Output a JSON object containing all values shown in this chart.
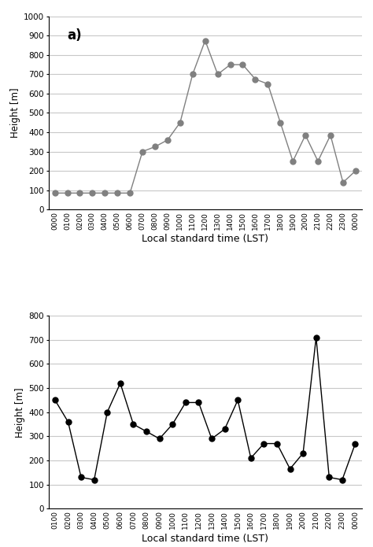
{
  "plot_a": {
    "label": "a)",
    "x_labels": [
      "0000",
      "0100",
      "0200",
      "0300",
      "0400",
      "0500",
      "0600",
      "0700",
      "0800",
      "0900",
      "1000",
      "1100",
      "1200",
      "1300",
      "1400",
      "1500",
      "1600",
      "1700",
      "1800",
      "1900",
      "2000",
      "2100",
      "2200",
      "2300",
      "0000"
    ],
    "values": [
      85,
      85,
      85,
      85,
      85,
      85,
      85,
      300,
      325,
      360,
      450,
      700,
      875,
      700,
      750,
      750,
      675,
      650,
      450,
      250,
      385,
      250,
      385,
      140,
      200
    ],
    "ylim": [
      0,
      1000
    ],
    "yticks": [
      0,
      100,
      200,
      300,
      400,
      500,
      600,
      700,
      800,
      900,
      1000
    ],
    "ylabel": "Height [m]",
    "xlabel": "Local standard time (LST)",
    "marker": "o",
    "markersize": 5,
    "color": "#808080",
    "linewidth": 1.0
  },
  "plot_b": {
    "x_labels": [
      "0100",
      "0200",
      "0300",
      "0400",
      "0500",
      "0600",
      "0700",
      "0800",
      "0900",
      "1000",
      "1100",
      "1200",
      "1300",
      "1400",
      "1500",
      "1600",
      "1700",
      "1800",
      "1900",
      "2000",
      "2100",
      "2200",
      "2300",
      "0000"
    ],
    "values": [
      450,
      360,
      130,
      120,
      400,
      520,
      350,
      320,
      290,
      350,
      440,
      440,
      290,
      330,
      450,
      210,
      270,
      270,
      165,
      230,
      710,
      130,
      120,
      270
    ],
    "ylim": [
      0,
      800
    ],
    "yticks": [
      0,
      100,
      200,
      300,
      400,
      500,
      600,
      700,
      800
    ],
    "ylabel": "Height [m]",
    "xlabel": "Local standard time (LST)",
    "marker": "o",
    "markersize": 5,
    "color": "#000000",
    "linewidth": 1.0
  },
  "background_color": "#ffffff",
  "grid_color": "#c8c8c8",
  "figure_width": 4.74,
  "figure_height": 6.95
}
